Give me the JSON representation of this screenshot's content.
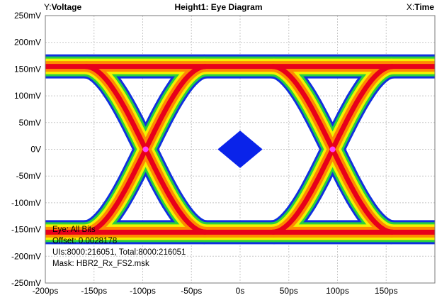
{
  "header": {
    "y_prefix": "Y:",
    "y_name": "Voltage",
    "title": "Height1: Eye Diagram",
    "x_prefix": "X:",
    "x_name": "Time"
  },
  "annotations": {
    "eye": "Eye: All Bits",
    "offset": "Offset: 0.0028178",
    "uis": "UIs:8000:216051, Total:8000:216051",
    "mask": "Mask: HBR2_Rx_FS2.msk"
  },
  "colors": {
    "hot": "#e8001a",
    "warm": "#ff8a00",
    "mid": "#f2f200",
    "cool": "#27d13f",
    "cold": "#1030e0",
    "crossing": "#ff40ff",
    "mask": "#0a23ea",
    "grid": "#c8c8c8"
  },
  "chart_data": {
    "type": "eye-diagram",
    "title": "Height1: Eye Diagram",
    "xlabel": "Time",
    "ylabel": "Voltage",
    "xlim": [
      -200,
      200
    ],
    "ylim": [
      -250,
      250
    ],
    "x_unit": "ps",
    "y_unit": "mV",
    "xticks": [
      -200,
      -150,
      -100,
      -50,
      0,
      50,
      100,
      150
    ],
    "xtick_labels": [
      "-200ps",
      "-150ps",
      "-100ps",
      "-50ps",
      "0s",
      "50ps",
      "100ps",
      "150ps"
    ],
    "yticks": [
      250,
      200,
      150,
      100,
      50,
      0,
      -50,
      -100,
      -150,
      -200,
      -250
    ],
    "ytick_labels": [
      "250mV",
      "200mV",
      "150mV",
      "100mV",
      "50mV",
      "0V",
      "-50mV",
      "-100mV",
      "-150mV",
      "-200mV",
      "-250mV"
    ],
    "grid": true,
    "levels_mV": {
      "high": 155,
      "low": -155
    },
    "crossings_ps": [
      -97,
      95
    ],
    "mask": {
      "shape": "diamond",
      "center": [
        0,
        0
      ],
      "half_width_ps": 23,
      "half_height_mV": 35
    }
  }
}
